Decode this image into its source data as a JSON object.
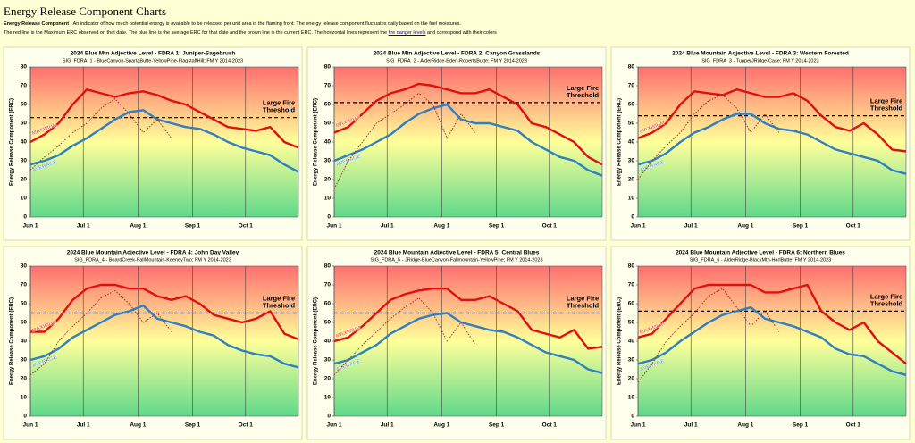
{
  "page": {
    "title": "Energy Release Component Charts",
    "intro_term": "Energy Release Component",
    "intro_text": " - An indicator of how much potential energy is available to be released per unit area in the flaming front. The energy release component fluctuates daily based on the fuel moistures.",
    "legend_text": "The red line is the Maximum ERC observed on that date. The blue line is the average ERC for that date and the brown line is the current ERC. The horizontal lines represent the ",
    "legend_link": "fire danger levels",
    "legend_tail": " and correspond with their colors"
  },
  "chart_data": [
    {
      "type": "line",
      "title": "2024 Blue Mtn Adjective Level - FDRA 1: Juniper-Sagebrush",
      "subtitle": "SIG_FDRA_1 - BlueCanyon-SpartaButte-YellowPine-FlagstaffHill;  FM Y  2014-2023",
      "ylabel": "Energy Release Component (ERC)",
      "x": [
        0,
        8,
        16,
        24,
        32,
        40,
        48,
        56,
        64,
        72,
        80,
        88,
        96,
        104,
        112,
        120,
        128,
        136,
        144,
        152
      ],
      "xlim": [
        0,
        152
      ],
      "xticks": [
        {
          "value": 0,
          "label": "Jun 1"
        },
        {
          "value": 30,
          "label": "Jul 1"
        },
        {
          "value": 61,
          "label": "Aug 1"
        },
        {
          "value": 92,
          "label": "Sep 1"
        },
        {
          "value": 122,
          "label": "Oct 1"
        }
      ],
      "ylim": [
        0,
        80
      ],
      "yticks": [
        0,
        10,
        20,
        30,
        40,
        50,
        60,
        70,
        80
      ],
      "grid": true,
      "threshold": 53,
      "threshold_label": [
        "Large Fire",
        "Threshold"
      ],
      "series": [
        {
          "name": "MAXIMUM",
          "color": "#e01010",
          "values": [
            40,
            44,
            50,
            60,
            68,
            66,
            64,
            66,
            67,
            65,
            62,
            60,
            56,
            52,
            48,
            47,
            46,
            48,
            40,
            37
          ]
        },
        {
          "name": "AVERAGE",
          "color": "#2f7fc1",
          "values": [
            28,
            30,
            33,
            38,
            42,
            47,
            52,
            56,
            57,
            52,
            50,
            48,
            47,
            44,
            40,
            37,
            35,
            33,
            28,
            24
          ]
        },
        {
          "color": "#a0302a",
          "values": [
            25,
            32,
            38,
            45,
            50,
            58,
            63,
            55,
            45,
            52,
            42,
            null,
            null,
            null,
            null,
            null,
            null,
            null,
            null,
            null
          ]
        }
      ]
    },
    {
      "type": "line",
      "title": "2024 Blue Mtn Adjective Level - FDRA 2: Canyon Grasslands",
      "subtitle": "SIG_FDRA_2 - AlderRidge-Eden-RobertsButte;  FM Y 2014-2023",
      "ylabel": "Energy Release Component (ERC)",
      "x": [
        0,
        8,
        16,
        24,
        32,
        40,
        48,
        56,
        64,
        72,
        80,
        88,
        96,
        104,
        112,
        120,
        128,
        136,
        144,
        152
      ],
      "xlim": [
        0,
        152
      ],
      "xticks": [
        {
          "value": 0,
          "label": "Jun 1"
        },
        {
          "value": 30,
          "label": "Jul 1"
        },
        {
          "value": 61,
          "label": "Aug 1"
        },
        {
          "value": 92,
          "label": "Sep 1"
        },
        {
          "value": 122,
          "label": "Oct 1"
        }
      ],
      "ylim": [
        0,
        80
      ],
      "yticks": [
        0,
        10,
        20,
        30,
        40,
        50,
        60,
        70,
        80
      ],
      "grid": true,
      "threshold": 61,
      "threshold_label": [
        "Large Fire",
        "Threshold"
      ],
      "series": [
        {
          "name": "MAXIMUM",
          "color": "#e01010",
          "values": [
            45,
            48,
            55,
            62,
            66,
            68,
            71,
            70,
            68,
            66,
            66,
            68,
            64,
            60,
            50,
            48,
            44,
            40,
            32,
            28
          ]
        },
        {
          "name": "AVERAGE",
          "color": "#2f7fc1",
          "values": [
            30,
            33,
            36,
            40,
            44,
            50,
            55,
            58,
            60,
            52,
            50,
            50,
            48,
            46,
            40,
            36,
            32,
            30,
            25,
            22
          ]
        },
        {
          "color": "#a0302a",
          "values": [
            15,
            30,
            40,
            50,
            55,
            60,
            66,
            60,
            42,
            55,
            45,
            null,
            null,
            null,
            null,
            null,
            null,
            null,
            null,
            null
          ]
        }
      ]
    },
    {
      "type": "line",
      "title": "2024 Blue Mountain Adjective Level - FDRA 3: Western Forested",
      "subtitle": "SIG_FDRA_3 - TupperJRidge-Case;  FM Y  2014-2023",
      "ylabel": "Energy Release Component (ERC)",
      "x": [
        0,
        8,
        16,
        24,
        32,
        40,
        48,
        56,
        64,
        72,
        80,
        88,
        96,
        104,
        112,
        120,
        128,
        136,
        144,
        152
      ],
      "xlim": [
        0,
        152
      ],
      "xticks": [
        {
          "value": 0,
          "label": "Jun 1"
        },
        {
          "value": 30,
          "label": "Jul 1"
        },
        {
          "value": 61,
          "label": "Aug 1"
        },
        {
          "value": 92,
          "label": "Sep 1"
        },
        {
          "value": 122,
          "label": "Oct 1"
        }
      ],
      "ylim": [
        0,
        80
      ],
      "yticks": [
        0,
        10,
        20,
        30,
        40,
        50,
        60,
        70,
        80
      ],
      "grid": true,
      "threshold": 54,
      "threshold_label": [
        "Large Fire",
        "Threshold"
      ],
      "series": [
        {
          "name": "MAXIMUM",
          "color": "#e01010",
          "values": [
            42,
            45,
            50,
            60,
            67,
            66,
            65,
            68,
            66,
            64,
            64,
            66,
            62,
            54,
            48,
            46,
            50,
            44,
            36,
            35
          ]
        },
        {
          "name": "AVERAGE",
          "color": "#2f7fc1",
          "values": [
            28,
            30,
            34,
            40,
            45,
            48,
            52,
            55,
            55,
            50,
            47,
            46,
            44,
            40,
            36,
            34,
            32,
            30,
            25,
            23
          ]
        },
        {
          "color": "#a0302a",
          "values": [
            20,
            30,
            38,
            45,
            55,
            62,
            65,
            58,
            45,
            55,
            45,
            null,
            null,
            null,
            null,
            null,
            null,
            null,
            null,
            null
          ]
        }
      ]
    },
    {
      "type": "line",
      "title": "2024 Blue Mountain Adjective Level - FDRA 4: John Day Valley",
      "subtitle": "SIG_FDRA_4 - BoardCreek-FallMountain-KeeneyTwo;  FM Y 2014-2023",
      "ylabel": "Energy Release Component (ERC)",
      "x": [
        0,
        8,
        16,
        24,
        32,
        40,
        48,
        56,
        64,
        72,
        80,
        88,
        96,
        104,
        112,
        120,
        128,
        136,
        144,
        152
      ],
      "xlim": [
        0,
        152
      ],
      "xticks": [
        {
          "value": 0,
          "label": "Jun 1"
        },
        {
          "value": 30,
          "label": "Jul 1"
        },
        {
          "value": 61,
          "label": "Aug 1"
        },
        {
          "value": 92,
          "label": "Sep 1"
        },
        {
          "value": 122,
          "label": "Oct 1"
        }
      ],
      "ylim": [
        0,
        80
      ],
      "yticks": [
        0,
        10,
        20,
        30,
        40,
        50,
        60,
        70,
        80
      ],
      "grid": true,
      "threshold": 55,
      "threshold_label": [
        "Large Fire",
        "Threshold"
      ],
      "series": [
        {
          "name": "MAXIMUM",
          "color": "#e01010",
          "values": [
            45,
            45,
            52,
            62,
            68,
            70,
            70,
            68,
            68,
            64,
            62,
            64,
            60,
            54,
            52,
            50,
            52,
            56,
            44,
            41
          ]
        },
        {
          "name": "AVERAGE",
          "color": "#2f7fc1",
          "values": [
            30,
            32,
            36,
            42,
            46,
            50,
            54,
            56,
            59,
            52,
            50,
            48,
            45,
            43,
            38,
            35,
            33,
            32,
            28,
            26
          ]
        },
        {
          "color": "#a0302a",
          "values": [
            22,
            28,
            40,
            48,
            55,
            63,
            67,
            60,
            50,
            55,
            45,
            null,
            null,
            null,
            null,
            null,
            null,
            null,
            null,
            null
          ]
        }
      ]
    },
    {
      "type": "line",
      "title": "2024 Blue Mountain Adjective Level - FDRA 5: Central Blues",
      "subtitle": "SIG_FDRA_5 - JRidge-BlueCanyon-Fallmountain-YellowPine;  FM Y 2014-2023",
      "ylabel": "Energy Release Component (ERC)",
      "x": [
        0,
        8,
        16,
        24,
        32,
        40,
        48,
        56,
        64,
        72,
        80,
        88,
        96,
        104,
        112,
        120,
        128,
        136,
        144,
        152
      ],
      "xlim": [
        0,
        152
      ],
      "xticks": [
        {
          "value": 0,
          "label": "Jun 1"
        },
        {
          "value": 30,
          "label": "Jul 1"
        },
        {
          "value": 61,
          "label": "Aug 1"
        },
        {
          "value": 92,
          "label": "Sep 1"
        },
        {
          "value": 122,
          "label": "Oct 1"
        }
      ],
      "ylim": [
        0,
        80
      ],
      "yticks": [
        0,
        10,
        20,
        30,
        40,
        50,
        60,
        70,
        80
      ],
      "grid": true,
      "threshold": 55,
      "threshold_label": [
        "Large Fire",
        "Threshold"
      ],
      "series": [
        {
          "name": "MAXIMUM",
          "color": "#e01010",
          "values": [
            40,
            42,
            48,
            55,
            62,
            65,
            67,
            68,
            68,
            62,
            62,
            64,
            60,
            56,
            46,
            44,
            42,
            46,
            36,
            37
          ]
        },
        {
          "name": "AVERAGE",
          "color": "#2f7fc1",
          "values": [
            28,
            30,
            34,
            38,
            44,
            48,
            52,
            54,
            55,
            50,
            48,
            46,
            45,
            42,
            38,
            34,
            32,
            30,
            25,
            23
          ]
        },
        {
          "color": "#a0302a",
          "values": [
            22,
            30,
            38,
            45,
            52,
            58,
            63,
            55,
            40,
            50,
            38,
            null,
            null,
            null,
            null,
            null,
            null,
            null,
            null,
            null
          ]
        }
      ]
    },
    {
      "type": "line",
      "title": "2024 Blue Mountain Adjective Level - FDRA 6: Northern Blues",
      "subtitle": "SIG_FDRA_6 - AlderRidge-BlackMtn-HarlButte;  FM Y 2014-2023",
      "ylabel": "Energy Release Component (ERC)",
      "x": [
        0,
        8,
        16,
        24,
        32,
        40,
        48,
        56,
        64,
        72,
        80,
        88,
        96,
        104,
        112,
        120,
        128,
        136,
        144,
        152
      ],
      "xlim": [
        0,
        152
      ],
      "xticks": [
        {
          "value": 0,
          "label": "Jun 1"
        },
        {
          "value": 30,
          "label": "Jul 1"
        },
        {
          "value": 61,
          "label": "Aug 1"
        },
        {
          "value": 92,
          "label": "Sep 1"
        },
        {
          "value": 122,
          "label": "Oct 1"
        }
      ],
      "ylim": [
        0,
        80
      ],
      "yticks": [
        0,
        10,
        20,
        30,
        40,
        50,
        60,
        70,
        80
      ],
      "grid": true,
      "threshold": 56,
      "threshold_label": [
        "Large Fire",
        "Threshold"
      ],
      "series": [
        {
          "name": "MAXIMUM",
          "color": "#e01010",
          "values": [
            42,
            44,
            52,
            60,
            68,
            70,
            70,
            70,
            70,
            66,
            66,
            68,
            70,
            56,
            50,
            46,
            50,
            40,
            34,
            28
          ]
        },
        {
          "name": "AVERAGE",
          "color": "#2f7fc1",
          "values": [
            28,
            30,
            34,
            40,
            45,
            50,
            54,
            56,
            58,
            52,
            50,
            48,
            45,
            42,
            36,
            33,
            32,
            28,
            24,
            22
          ]
        },
        {
          "color": "#a0302a",
          "values": [
            18,
            28,
            40,
            48,
            55,
            64,
            68,
            58,
            48,
            56,
            45,
            null,
            null,
            null,
            null,
            null,
            null,
            null,
            null,
            null
          ]
        }
      ]
    }
  ]
}
